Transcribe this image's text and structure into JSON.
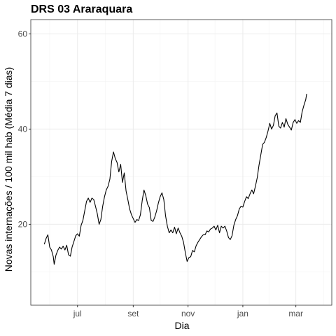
{
  "chart_data": {
    "type": "line",
    "title": "DRS 03 Araraquara",
    "xlabel": "Dia",
    "ylabel": "Novas internações / 100 mil hab (Média 7 dias)",
    "x_ticks": [
      {
        "label": "jul",
        "date": "2020-07-01"
      },
      {
        "label": "set",
        "date": "2020-09-01"
      },
      {
        "label": "nov",
        "date": "2020-11-01"
      },
      {
        "label": "jan",
        "date": "2021-01-01"
      },
      {
        "label": "mar",
        "date": "2021-03-01"
      }
    ],
    "y_ticks": [
      20,
      40,
      60
    ],
    "ylim": [
      3,
      63
    ],
    "xlim": [
      "2020-05-10",
      "2021-04-10"
    ],
    "grid": true,
    "series": [
      {
        "points": [
          [
            "2020-05-25",
            15.8
          ],
          [
            "2020-05-27",
            17.0
          ],
          [
            "2020-05-29",
            17.8
          ],
          [
            "2020-05-31",
            15.2
          ],
          [
            "2020-06-02",
            14.6
          ],
          [
            "2020-06-04",
            13.2
          ],
          [
            "2020-06-05",
            11.6
          ],
          [
            "2020-06-07",
            13.5
          ],
          [
            "2020-06-09",
            14.5
          ],
          [
            "2020-06-11",
            15.2
          ],
          [
            "2020-06-13",
            14.8
          ],
          [
            "2020-06-15",
            15.4
          ],
          [
            "2020-06-17",
            14.6
          ],
          [
            "2020-06-19",
            15.6
          ],
          [
            "2020-06-21",
            13.6
          ],
          [
            "2020-06-23",
            13.3
          ],
          [
            "2020-06-25",
            15.2
          ],
          [
            "2020-06-27",
            16.4
          ],
          [
            "2020-06-29",
            17.6
          ],
          [
            "2020-07-01",
            18.0
          ],
          [
            "2020-07-03",
            17.5
          ],
          [
            "2020-07-05",
            19.8
          ],
          [
            "2020-07-07",
            20.8
          ],
          [
            "2020-07-09",
            22.8
          ],
          [
            "2020-07-11",
            24.8
          ],
          [
            "2020-07-13",
            25.5
          ],
          [
            "2020-07-15",
            24.6
          ],
          [
            "2020-07-17",
            25.5
          ],
          [
            "2020-07-19",
            25.2
          ],
          [
            "2020-07-21",
            23.8
          ],
          [
            "2020-07-23",
            22.2
          ],
          [
            "2020-07-25",
            20.0
          ],
          [
            "2020-07-27",
            21.0
          ],
          [
            "2020-07-29",
            23.8
          ],
          [
            "2020-07-31",
            25.8
          ],
          [
            "2020-08-02",
            27.2
          ],
          [
            "2020-08-04",
            28.0
          ],
          [
            "2020-08-06",
            29.5
          ],
          [
            "2020-08-08",
            33.2
          ],
          [
            "2020-08-10",
            35.2
          ],
          [
            "2020-08-12",
            33.8
          ],
          [
            "2020-08-14",
            33.0
          ],
          [
            "2020-08-16",
            31.0
          ],
          [
            "2020-08-18",
            32.6
          ],
          [
            "2020-08-20",
            28.8
          ],
          [
            "2020-08-22",
            30.8
          ],
          [
            "2020-08-24",
            27.0
          ],
          [
            "2020-08-26",
            25.2
          ],
          [
            "2020-08-28",
            23.2
          ],
          [
            "2020-08-30",
            22.0
          ],
          [
            "2020-09-01",
            21.2
          ],
          [
            "2020-09-03",
            20.4
          ],
          [
            "2020-09-05",
            21.0
          ],
          [
            "2020-09-07",
            20.8
          ],
          [
            "2020-09-09",
            22.0
          ],
          [
            "2020-09-11",
            25.0
          ],
          [
            "2020-09-13",
            27.2
          ],
          [
            "2020-09-15",
            26.0
          ],
          [
            "2020-09-17",
            24.2
          ],
          [
            "2020-09-19",
            23.5
          ],
          [
            "2020-09-21",
            20.8
          ],
          [
            "2020-09-23",
            20.6
          ],
          [
            "2020-09-25",
            21.5
          ],
          [
            "2020-09-27",
            22.8
          ],
          [
            "2020-09-29",
            24.5
          ],
          [
            "2020-10-01",
            25.8
          ],
          [
            "2020-10-03",
            26.6
          ],
          [
            "2020-10-05",
            25.2
          ],
          [
            "2020-10-07",
            21.8
          ],
          [
            "2020-10-09",
            19.6
          ],
          [
            "2020-10-11",
            18.2
          ],
          [
            "2020-10-13",
            18.8
          ],
          [
            "2020-10-15",
            18.2
          ],
          [
            "2020-10-17",
            19.4
          ],
          [
            "2020-10-19",
            18.0
          ],
          [
            "2020-10-21",
            19.2
          ],
          [
            "2020-10-23",
            18.2
          ],
          [
            "2020-10-25",
            17.5
          ],
          [
            "2020-10-27",
            16.2
          ],
          [
            "2020-10-29",
            14.0
          ],
          [
            "2020-10-31",
            12.2
          ],
          [
            "2020-11-02",
            13.0
          ],
          [
            "2020-11-04",
            13.2
          ],
          [
            "2020-11-06",
            14.5
          ],
          [
            "2020-11-08",
            14.2
          ],
          [
            "2020-11-10",
            15.5
          ],
          [
            "2020-11-12",
            16.2
          ],
          [
            "2020-11-14",
            16.8
          ],
          [
            "2020-11-16",
            17.4
          ],
          [
            "2020-11-18",
            17.8
          ],
          [
            "2020-11-20",
            17.8
          ],
          [
            "2020-11-22",
            18.6
          ],
          [
            "2020-11-24",
            18.4
          ],
          [
            "2020-11-26",
            19.0
          ],
          [
            "2020-11-28",
            19.2
          ],
          [
            "2020-11-30",
            19.6
          ],
          [
            "2020-12-02",
            18.8
          ],
          [
            "2020-12-04",
            19.8
          ],
          [
            "2020-12-06",
            18.2
          ],
          [
            "2020-12-08",
            19.6
          ],
          [
            "2020-12-10",
            19.2
          ],
          [
            "2020-12-12",
            19.6
          ],
          [
            "2020-12-14",
            18.6
          ],
          [
            "2020-12-16",
            17.2
          ],
          [
            "2020-12-18",
            16.8
          ],
          [
            "2020-12-20",
            17.6
          ],
          [
            "2020-12-22",
            19.8
          ],
          [
            "2020-12-24",
            21.0
          ],
          [
            "2020-12-26",
            21.8
          ],
          [
            "2020-12-28",
            23.2
          ],
          [
            "2020-12-30",
            23.8
          ],
          [
            "2021-01-01",
            23.6
          ],
          [
            "2021-01-03",
            24.8
          ],
          [
            "2021-01-05",
            25.8
          ],
          [
            "2021-01-07",
            25.4
          ],
          [
            "2021-01-09",
            26.4
          ],
          [
            "2021-01-11",
            27.2
          ],
          [
            "2021-01-13",
            26.4
          ],
          [
            "2021-01-15",
            28.0
          ],
          [
            "2021-01-17",
            29.8
          ],
          [
            "2021-01-19",
            32.4
          ],
          [
            "2021-01-21",
            34.6
          ],
          [
            "2021-01-23",
            36.8
          ],
          [
            "2021-01-25",
            37.2
          ],
          [
            "2021-01-27",
            38.2
          ],
          [
            "2021-01-29",
            39.6
          ],
          [
            "2021-01-31",
            41.2
          ],
          [
            "2021-02-02",
            40.0
          ],
          [
            "2021-02-04",
            40.8
          ],
          [
            "2021-02-06",
            42.8
          ],
          [
            "2021-02-08",
            43.4
          ],
          [
            "2021-02-10",
            40.6
          ],
          [
            "2021-02-12",
            40.2
          ],
          [
            "2021-02-14",
            41.4
          ],
          [
            "2021-02-16",
            40.4
          ],
          [
            "2021-02-18",
            42.2
          ],
          [
            "2021-02-20",
            41.0
          ],
          [
            "2021-02-22",
            40.4
          ],
          [
            "2021-02-24",
            39.8
          ],
          [
            "2021-02-26",
            41.4
          ],
          [
            "2021-02-28",
            42.0
          ],
          [
            "2021-03-02",
            41.2
          ],
          [
            "2021-03-04",
            41.8
          ],
          [
            "2021-03-06",
            41.4
          ],
          [
            "2021-03-08",
            43.6
          ],
          [
            "2021-03-10",
            45.0
          ],
          [
            "2021-03-12",
            46.2
          ],
          [
            "2021-03-13",
            47.4
          ]
        ]
      }
    ]
  }
}
